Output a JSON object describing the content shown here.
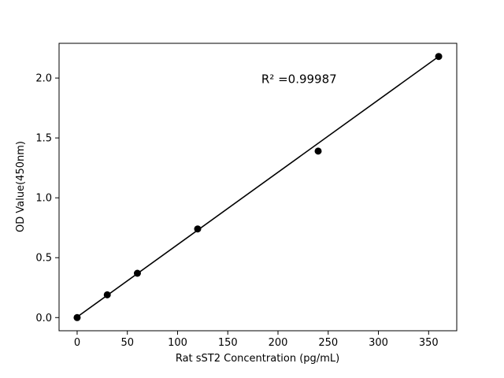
{
  "chart_data": {
    "type": "scatter",
    "title": "",
    "xlabel": "Rat sST2 Concentration (pg/mL)",
    "ylabel": "OD Value(450nm)",
    "x": [
      0,
      30,
      60,
      120,
      240,
      360
    ],
    "y": [
      0.0,
      0.19,
      0.37,
      0.74,
      1.39,
      2.18
    ],
    "trendline": {
      "x1": 0,
      "y1": 0.005,
      "x2": 360,
      "y2": 2.18
    },
    "annotation": {
      "text": "R² =0.99987",
      "x": 221,
      "y": 1.99
    },
    "xlim": [
      -18,
      378
    ],
    "ylim": [
      -0.11,
      2.29
    ],
    "x_ticks": [
      0,
      50,
      100,
      150,
      200,
      250,
      300,
      350
    ],
    "x_tick_labels": [
      "0",
      "50",
      "100",
      "150",
      "200",
      "250",
      "300",
      "350"
    ],
    "y_ticks": [
      0.0,
      0.5,
      1.0,
      1.5,
      2.0
    ],
    "y_tick_labels": [
      "0.0",
      "0.5",
      "1.0",
      "1.5",
      "2.0"
    ],
    "grid": false,
    "legend": null,
    "colors": {
      "marker": "#000000",
      "line": "#000000",
      "background": "#ffffff"
    }
  }
}
